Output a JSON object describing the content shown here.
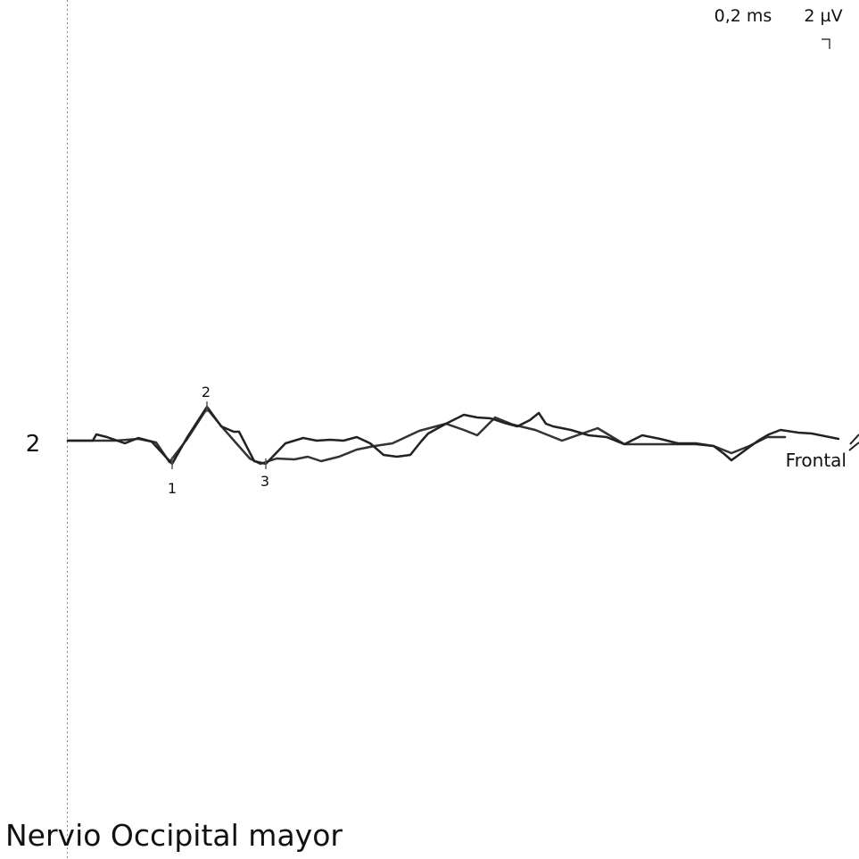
{
  "scale": {
    "time": "0,2 ms",
    "amplitude": "2 µV"
  },
  "trace": {
    "number": "2",
    "label": "Frontal",
    "markers": [
      "1",
      "2",
      "3"
    ]
  },
  "title": "Nervio Occipital mayor"
}
